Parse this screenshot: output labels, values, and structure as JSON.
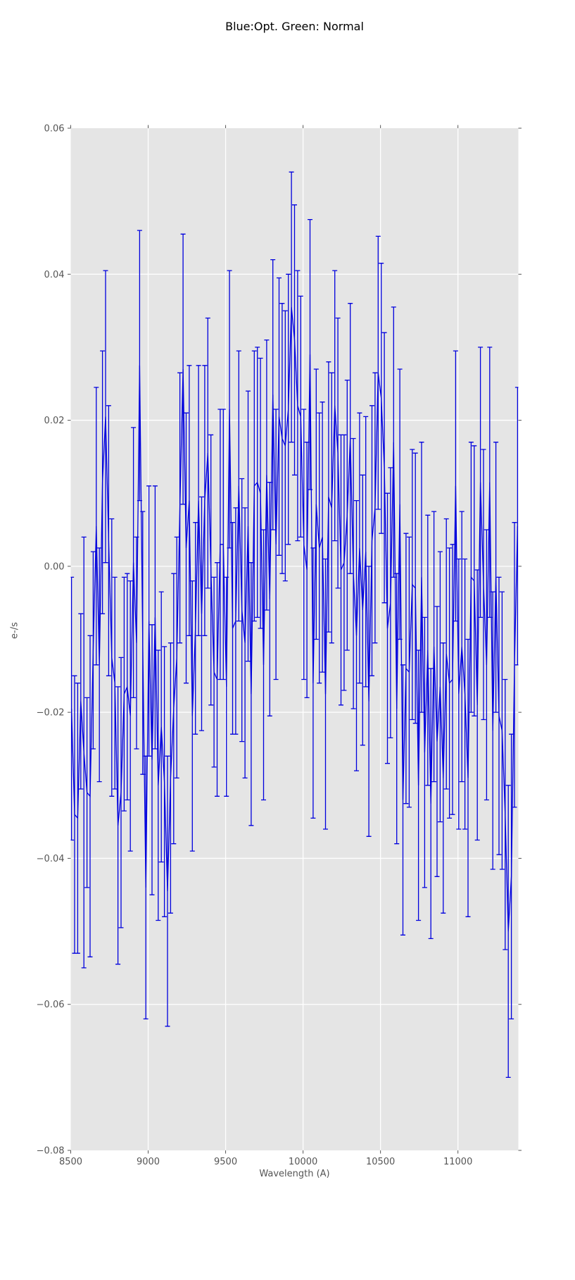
{
  "chart": {
    "title": "Blue:Opt. Green: Normal",
    "xlabel": "Wavelength (A)",
    "ylabel": "e-/s",
    "colors": {
      "axes_background": "#e5e5e5",
      "figure_background": "#ffffff",
      "gridline": "#ffffff",
      "line": "#0000dd",
      "tick": "#555555",
      "tick_label": "#555555",
      "title_text": "#000000"
    }
  },
  "chart_data": {
    "type": "line",
    "title": "Blue:Opt. Green: Normal",
    "xlabel": "Wavelength (A)",
    "ylabel": "e-/s",
    "xlim": [
      8500,
      11390
    ],
    "ylim": [
      -0.08,
      0.06
    ],
    "grid": true,
    "legend": false,
    "xticks": {
      "values": [
        8500,
        9000,
        9500,
        10000,
        10500,
        11000
      ],
      "labels": [
        "8500",
        "9000",
        "9500",
        "10000",
        "10500",
        "11000"
      ]
    },
    "yticks": {
      "values": [
        0.06,
        0.04,
        0.02,
        0.0,
        -0.02,
        -0.04,
        -0.06,
        -0.08
      ],
      "labels": [
        "0.06",
        "0.04",
        "0.02",
        "0.00",
        "−0.02",
        "−0.04",
        "−0.06",
        "−0.08"
      ]
    },
    "series": [
      {
        "name": "spectrum",
        "color": "#0000dd",
        "style": "line-with-errorbars",
        "x": [
          8505,
          8525,
          8545,
          8565,
          8585,
          8605,
          8625,
          8645,
          8665,
          8685,
          8705,
          8725,
          8745,
          8765,
          8785,
          8805,
          8825,
          8845,
          8865,
          8885,
          8905,
          8925,
          8945,
          8965,
          8985,
          9005,
          9025,
          9045,
          9065,
          9085,
          9105,
          9125,
          9145,
          9165,
          9185,
          9205,
          9225,
          9245,
          9265,
          9285,
          9305,
          9325,
          9345,
          9365,
          9385,
          9405,
          9425,
          9445,
          9465,
          9485,
          9505,
          9525,
          9545,
          9565,
          9585,
          9605,
          9625,
          9645,
          9665,
          9685,
          9705,
          9725,
          9745,
          9765,
          9785,
          9805,
          9825,
          9845,
          9865,
          9885,
          9905,
          9925,
          9945,
          9965,
          9985,
          10005,
          10025,
          10045,
          10065,
          10085,
          10105,
          10125,
          10145,
          10165,
          10185,
          10205,
          10225,
          10245,
          10265,
          10285,
          10305,
          10325,
          10345,
          10365,
          10385,
          10405,
          10425,
          10445,
          10465,
          10485,
          10505,
          10525,
          10545,
          10565,
          10585,
          10605,
          10625,
          10645,
          10665,
          10685,
          10705,
          10725,
          10745,
          10765,
          10785,
          10805,
          10825,
          10845,
          10865,
          10885,
          10905,
          10925,
          10945,
          10965,
          10985,
          11005,
          11025,
          11045,
          11065,
          11085,
          11105,
          11125,
          11145,
          11165,
          11185,
          11205,
          11225,
          11245,
          11265,
          11285,
          11305,
          11325,
          11345,
          11365,
          11385
        ],
        "y": [
          -0.0195,
          -0.034,
          -0.0345,
          -0.0185,
          -0.0255,
          -0.031,
          -0.0315,
          -0.0115,
          0.0055,
          -0.0135,
          0.0115,
          0.0205,
          0.0035,
          -0.0125,
          -0.016,
          -0.0355,
          -0.031,
          -0.0175,
          -0.0165,
          -0.0205,
          0.0005,
          -0.0105,
          0.0275,
          -0.0105,
          -0.044,
          -0.0075,
          -0.0265,
          -0.007,
          -0.03,
          -0.022,
          -0.0295,
          -0.0445,
          -0.029,
          -0.0195,
          -0.0125,
          0.008,
          0.027,
          0.0025,
          0.009,
          -0.0205,
          -0.0085,
          0.009,
          -0.0065,
          0.009,
          0.0155,
          -0.0005,
          -0.0145,
          -0.0155,
          0.003,
          0.003,
          -0.0165,
          0.0215,
          -0.0085,
          -0.0075,
          0.011,
          -0.006,
          -0.0105,
          0.0055,
          -0.0175,
          0.011,
          0.0115,
          0.01,
          -0.0135,
          0.0125,
          -0.0045,
          0.0235,
          0.003,
          0.0205,
          0.0175,
          0.0165,
          0.0215,
          0.0355,
          0.031,
          0.022,
          0.0205,
          0.003,
          -0.0005,
          0.029,
          -0.016,
          0.0085,
          0.0025,
          0.004,
          -0.0175,
          0.0095,
          0.008,
          0.022,
          0.0155,
          -0.0005,
          0.0005,
          0.007,
          0.0175,
          -0.001,
          -0.0095,
          0.0025,
          -0.006,
          0.002,
          -0.0185,
          0.0035,
          0.008,
          0.0265,
          0.023,
          0.0135,
          -0.0085,
          -0.005,
          0.017,
          -0.0195,
          0.0085,
          -0.032,
          -0.014,
          -0.0145,
          -0.0025,
          -0.003,
          -0.03,
          -0.0015,
          -0.0255,
          -0.0115,
          -0.0325,
          -0.011,
          -0.024,
          -0.0165,
          -0.029,
          -0.012,
          -0.016,
          -0.0155,
          0.011,
          -0.0175,
          -0.011,
          -0.0175,
          -0.029,
          -0.0015,
          -0.002,
          -0.019,
          0.0115,
          -0.0025,
          -0.0135,
          0.0115,
          -0.0225,
          -0.0015,
          -0.0205,
          -0.0225,
          -0.034,
          -0.05,
          -0.0425,
          -0.0135,
          0.0055
        ],
        "yerr": [
          0.018,
          0.019,
          0.0185,
          0.012,
          0.0295,
          0.013,
          0.022,
          0.0135,
          0.019,
          0.016,
          0.018,
          0.02,
          0.0185,
          0.019,
          0.0145,
          0.019,
          0.0185,
          0.016,
          0.0155,
          0.0185,
          0.0185,
          0.0145,
          0.0185,
          0.018,
          0.018,
          0.0185,
          0.0185,
          0.018,
          0.0185,
          0.0185,
          0.0185,
          0.0185,
          0.0185,
          0.0185,
          0.0165,
          0.0185,
          0.0185,
          0.0185,
          0.0185,
          0.0185,
          0.0145,
          0.0185,
          0.016,
          0.0185,
          0.0185,
          0.0185,
          0.013,
          0.016,
          0.0185,
          0.0185,
          0.015,
          0.019,
          0.0145,
          0.0155,
          0.0185,
          0.018,
          0.0185,
          0.0185,
          0.018,
          0.0185,
          0.0185,
          0.0185,
          0.0185,
          0.0185,
          0.016,
          0.0185,
          0.0185,
          0.019,
          0.0185,
          0.0185,
          0.0185,
          0.0185,
          0.0185,
          0.0185,
          0.0165,
          0.0185,
          0.0175,
          0.0185,
          0.0185,
          0.0185,
          0.0185,
          0.0185,
          0.0185,
          0.0185,
          0.0185,
          0.0185,
          0.0185,
          0.0185,
          0.0175,
          0.0185,
          0.0185,
          0.0185,
          0.0185,
          0.0185,
          0.0185,
          0.0185,
          0.0185,
          0.0185,
          0.0185,
          0.0187,
          0.0185,
          0.0185,
          0.0185,
          0.0185,
          0.0185,
          0.0185,
          0.0185,
          0.0185,
          0.0185,
          0.0185,
          0.0185,
          0.0185,
          0.0185,
          0.0185,
          0.0185,
          0.0185,
          0.0185,
          0.0185,
          0.0185,
          0.0185,
          0.0185,
          0.0185,
          0.0185,
          0.0185,
          0.0185,
          0.0185,
          0.0185,
          0.0185,
          0.019,
          0.0185,
          0.0185,
          0.0185,
          0.0185,
          0.0185,
          0.0185,
          0.0185,
          0.019,
          0.0185,
          0.019,
          0.019,
          0.0185,
          0.02,
          0.0195,
          0.0195,
          0.019
        ]
      }
    ]
  }
}
